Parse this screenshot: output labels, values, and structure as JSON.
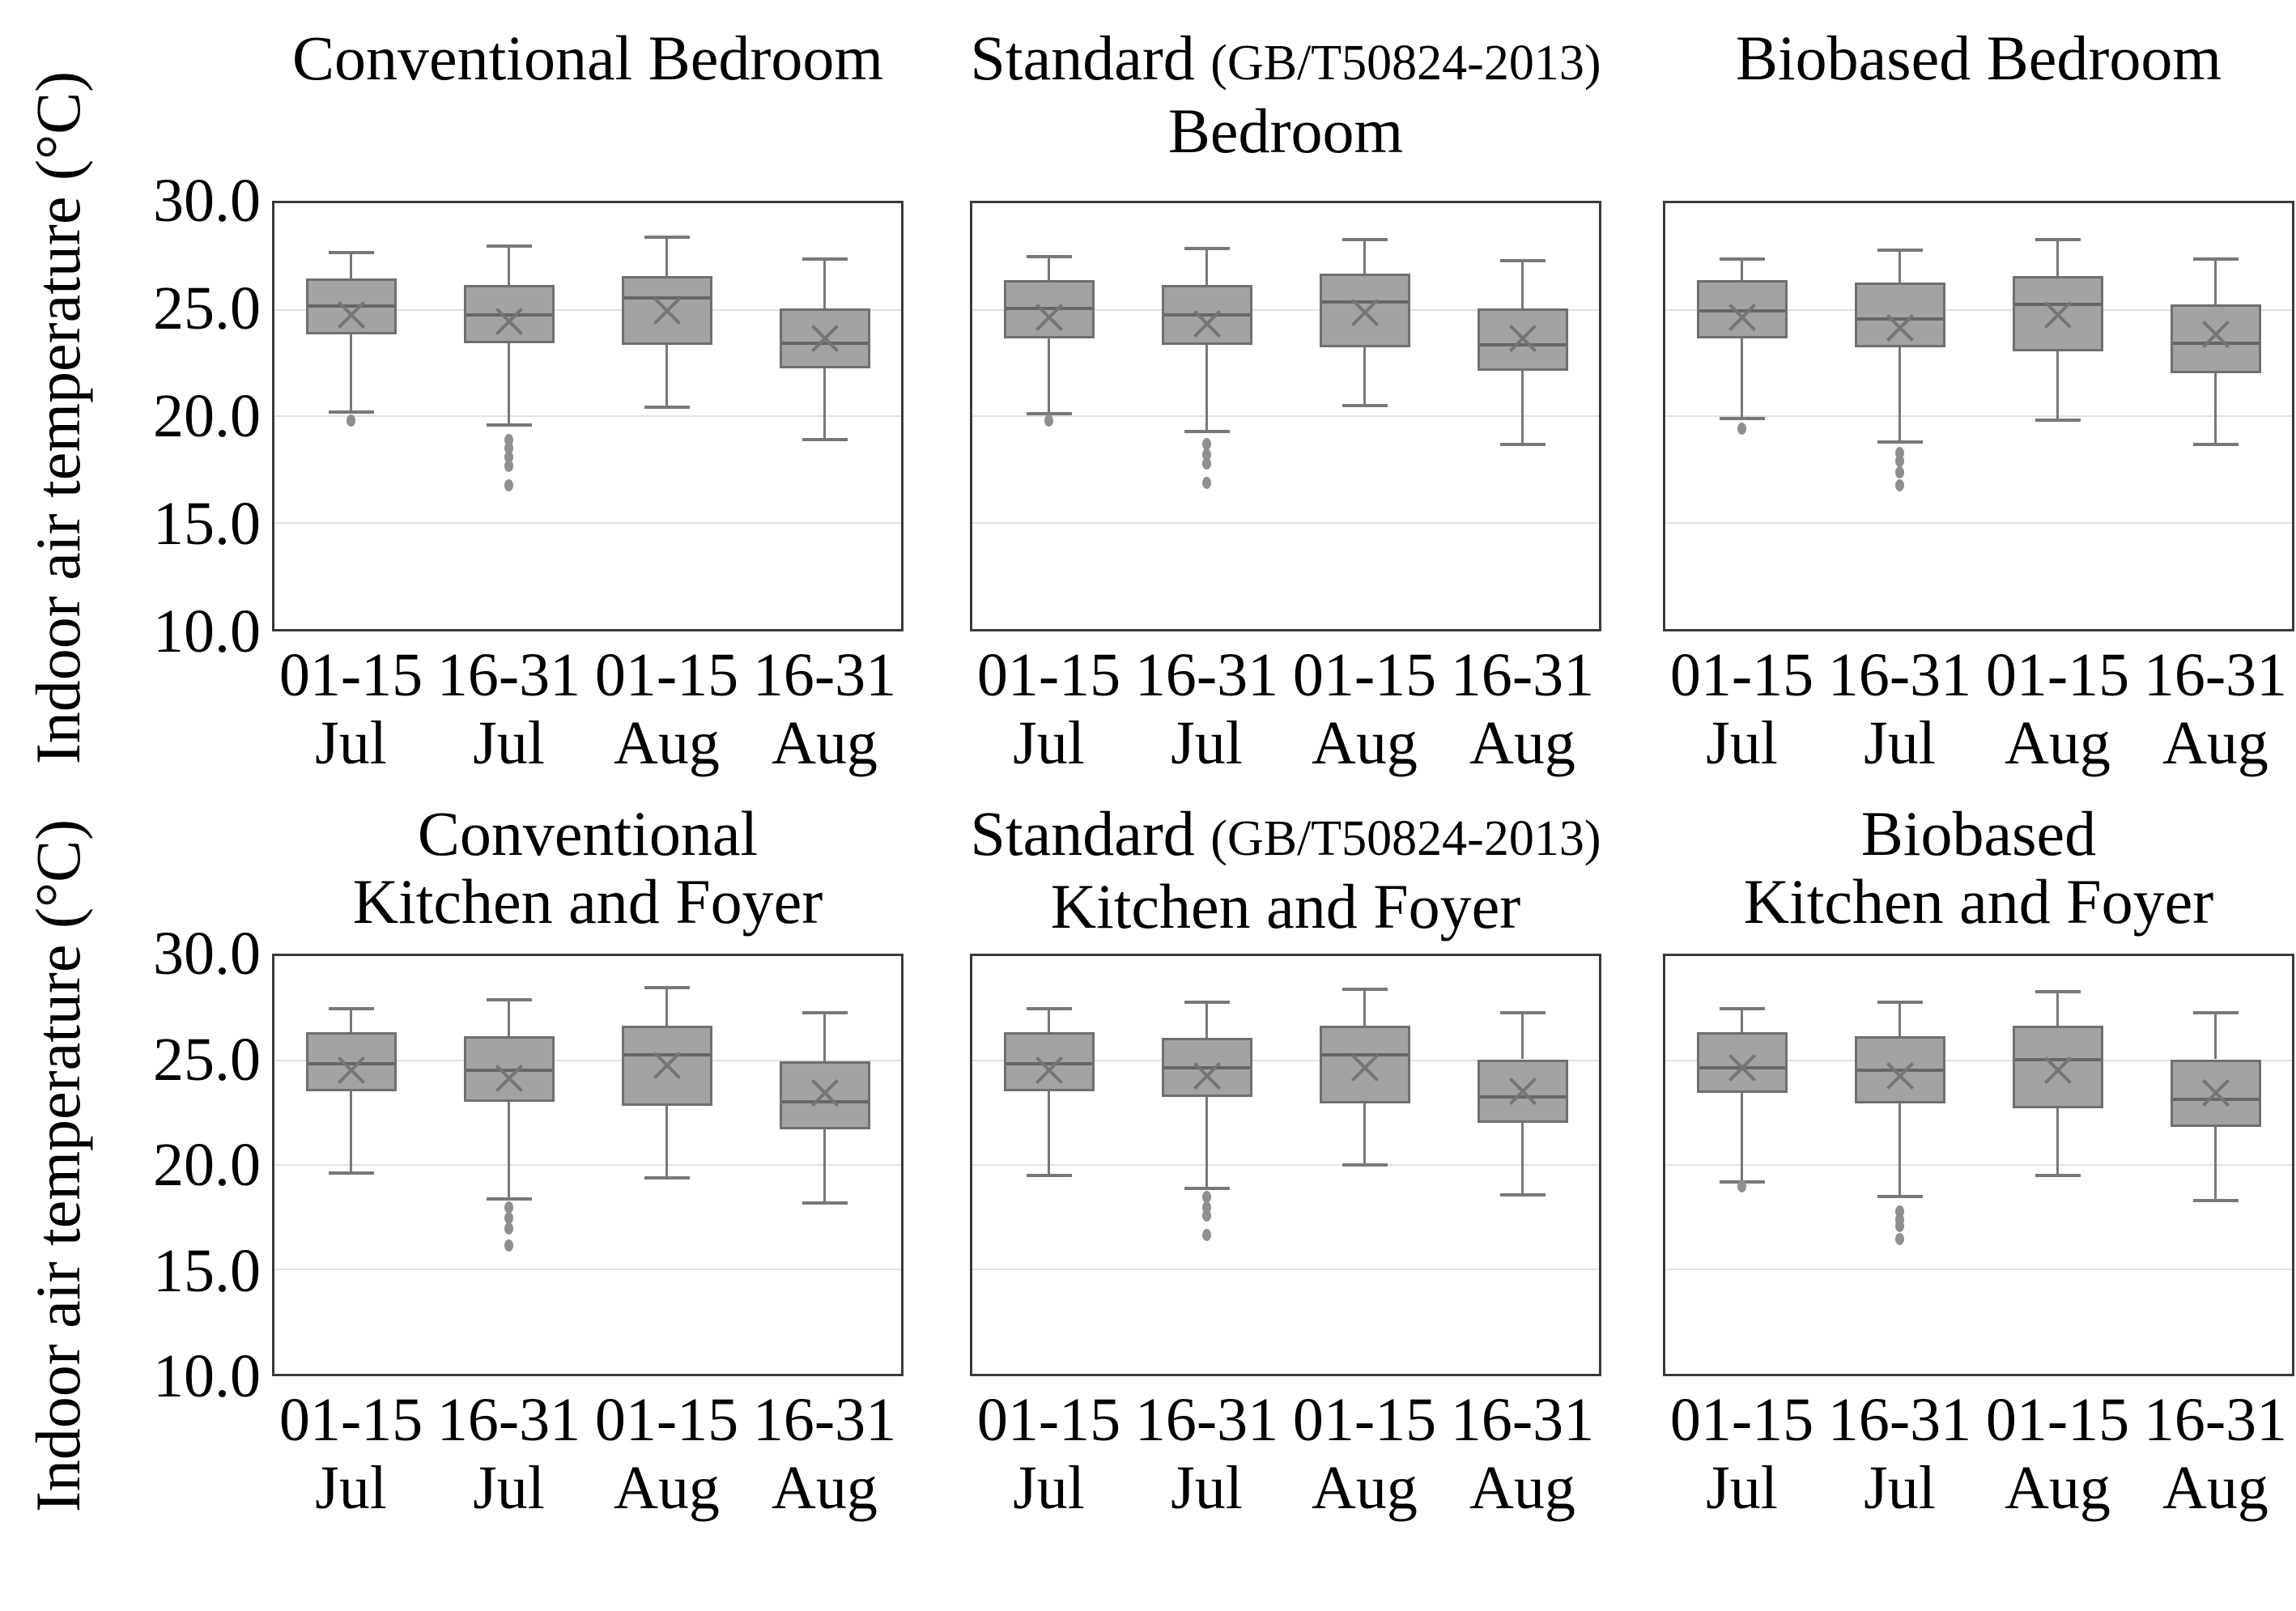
{
  "figure": {
    "description": "Six box plots of indoor air temperature by half-month period for three wall types (Conventional, Standard GB/T50824-2013, Biobased) and two room groups (Bedroom; Kitchen and Foyer)"
  },
  "chart_data": {
    "type": "boxplot",
    "layout": "2 rows x 3 columns, shared y axis per row",
    "ylabel": "Indoor air temperature (°C)",
    "ylim": [
      10.0,
      30.0
    ],
    "yticks": [
      30.0,
      25.0,
      20.0,
      15.0,
      10.0
    ],
    "ytick_labels": [
      "30.0",
      "25.0",
      "20.0",
      "15.0",
      "10.0"
    ],
    "gridlines": [
      25.0,
      20.0,
      15.0
    ],
    "grid": "horizontal light gray lines at 25, 20, 15; frame at 30 and 10",
    "legend": "none",
    "box_fill_color": "#a3a3a3",
    "box_line_color": "#6f6f6f",
    "whisker_color": "#787878",
    "gridline_color": "#e2e2e2",
    "categories": [
      {
        "period": "01-15",
        "month": "Jul"
      },
      {
        "period": "16-31",
        "month": "Jul"
      },
      {
        "period": "01-15",
        "month": "Aug"
      },
      {
        "period": "16-31",
        "month": "Aug"
      }
    ],
    "panels": [
      {
        "name": "conventional-bedroom",
        "row": 0,
        "col": 0,
        "title_lines": [
          [
            {
              "text": "Conventional Bedroom",
              "small": false
            }
          ]
        ],
        "boxes": [
          {
            "category": "01-15 Jul",
            "whisker_low": 20.2,
            "q1": 23.8,
            "median": 25.1,
            "mean": 24.7,
            "q3": 26.4,
            "whisker_high": 27.6,
            "outliers": [
              19.8
            ]
          },
          {
            "category": "16-31 Jul",
            "whisker_low": 19.6,
            "q1": 23.4,
            "median": 24.7,
            "mean": 24.4,
            "q3": 26.1,
            "whisker_high": 27.9,
            "outliers": [
              18.9,
              18.5,
              18.1,
              17.7,
              16.8
            ]
          },
          {
            "category": "01-15 Aug",
            "whisker_low": 20.4,
            "q1": 23.3,
            "median": 25.5,
            "mean": 24.9,
            "q3": 26.5,
            "whisker_high": 28.3,
            "outliers": []
          },
          {
            "category": "16-31 Aug",
            "whisker_low": 18.9,
            "q1": 22.2,
            "median": 23.4,
            "mean": 23.6,
            "q3": 25.0,
            "whisker_high": 27.3,
            "outliers": []
          }
        ]
      },
      {
        "name": "standard-bedroom",
        "row": 0,
        "col": 1,
        "title_lines": [
          [
            {
              "text": "Standard ",
              "small": false
            },
            {
              "text": "(GB/T50824-2013)",
              "small": true
            }
          ],
          [
            {
              "text": "Bedroom",
              "small": false
            }
          ]
        ],
        "boxes": [
          {
            "category": "01-15 Jul",
            "whisker_low": 20.1,
            "q1": 23.6,
            "median": 25.0,
            "mean": 24.6,
            "q3": 26.3,
            "whisker_high": 27.4,
            "outliers": [
              19.8
            ]
          },
          {
            "category": "16-31 Jul",
            "whisker_low": 19.3,
            "q1": 23.3,
            "median": 24.7,
            "mean": 24.3,
            "q3": 26.1,
            "whisker_high": 27.8,
            "outliers": [
              18.7,
              18.2,
              17.8,
              16.9
            ]
          },
          {
            "category": "01-15 Aug",
            "whisker_low": 20.5,
            "q1": 23.2,
            "median": 25.3,
            "mean": 24.8,
            "q3": 26.6,
            "whisker_high": 28.2,
            "outliers": []
          },
          {
            "category": "16-31 Aug",
            "whisker_low": 18.7,
            "q1": 22.1,
            "median": 23.3,
            "mean": 23.6,
            "q3": 25.0,
            "whisker_high": 27.2,
            "outliers": []
          }
        ]
      },
      {
        "name": "biobased-bedroom",
        "row": 0,
        "col": 2,
        "title_lines": [
          [
            {
              "text": "Biobased Bedroom",
              "small": false
            }
          ]
        ],
        "boxes": [
          {
            "category": "01-15 Jul",
            "whisker_low": 19.9,
            "q1": 23.6,
            "median": 24.9,
            "mean": 24.6,
            "q3": 26.3,
            "whisker_high": 27.3,
            "outliers": [
              19.4
            ]
          },
          {
            "category": "16-31 Jul",
            "whisker_low": 18.8,
            "q1": 23.2,
            "median": 24.5,
            "mean": 24.1,
            "q3": 26.2,
            "whisker_high": 27.7,
            "outliers": [
              18.3,
              17.9,
              17.4,
              16.8
            ]
          },
          {
            "category": "01-15 Aug",
            "whisker_low": 19.8,
            "q1": 23.0,
            "median": 25.2,
            "mean": 24.7,
            "q3": 26.5,
            "whisker_high": 28.2,
            "outliers": []
          },
          {
            "category": "16-31 Aug",
            "whisker_low": 18.7,
            "q1": 22.0,
            "median": 23.4,
            "mean": 23.8,
            "q3": 25.2,
            "whisker_high": 27.3,
            "outliers": []
          }
        ]
      },
      {
        "name": "conventional-kitchen-foyer",
        "row": 1,
        "col": 0,
        "title_lines": [
          [
            {
              "text": "Conventional",
              "small": false
            }
          ],
          [
            {
              "text": "Kitchen and Foyer",
              "small": false
            }
          ]
        ],
        "boxes": [
          {
            "category": "01-15 Jul",
            "whisker_low": 19.6,
            "q1": 23.5,
            "median": 24.8,
            "mean": 24.5,
            "q3": 26.3,
            "whisker_high": 27.4,
            "outliers": []
          },
          {
            "category": "16-31 Jul",
            "whisker_low": 18.4,
            "q1": 23.0,
            "median": 24.5,
            "mean": 24.1,
            "q3": 26.1,
            "whisker_high": 27.8,
            "outliers": [
              18.0,
              17.5,
              17.0,
              16.2
            ]
          },
          {
            "category": "01-15 Aug",
            "whisker_low": 19.4,
            "q1": 22.8,
            "median": 25.2,
            "mean": 24.7,
            "q3": 26.6,
            "whisker_high": 28.4,
            "outliers": []
          },
          {
            "category": "16-31 Aug",
            "whisker_low": 18.2,
            "q1": 21.7,
            "median": 23.0,
            "mean": 23.4,
            "q3": 24.9,
            "whisker_high": 27.2,
            "outliers": []
          }
        ]
      },
      {
        "name": "standard-kitchen-foyer",
        "row": 1,
        "col": 1,
        "title_lines": [
          [
            {
              "text": "Standard ",
              "small": false
            },
            {
              "text": "(GB/T50824-2013)",
              "small": true
            }
          ],
          [
            {
              "text": "Kitchen and Foyer",
              "small": false
            }
          ]
        ],
        "boxes": [
          {
            "category": "01-15 Jul",
            "whisker_low": 19.5,
            "q1": 23.5,
            "median": 24.8,
            "mean": 24.5,
            "q3": 26.3,
            "whisker_high": 27.4,
            "outliers": []
          },
          {
            "category": "16-31 Jul",
            "whisker_low": 18.9,
            "q1": 23.2,
            "median": 24.6,
            "mean": 24.2,
            "q3": 26.0,
            "whisker_high": 27.7,
            "outliers": [
              18.5,
              18.0,
              17.6,
              16.7
            ]
          },
          {
            "category": "01-15 Aug",
            "whisker_low": 20.0,
            "q1": 22.9,
            "median": 25.2,
            "mean": 24.6,
            "q3": 26.6,
            "whisker_high": 28.3,
            "outliers": []
          },
          {
            "category": "16-31 Aug",
            "whisker_low": 18.6,
            "q1": 22.0,
            "median": 23.2,
            "mean": 23.5,
            "q3": 25.0,
            "whisker_high": 27.2,
            "outliers": []
          }
        ]
      },
      {
        "name": "biobased-kitchen-foyer",
        "row": 1,
        "col": 2,
        "title_lines": [
          [
            {
              "text": "Biobased",
              "small": false
            }
          ],
          [
            {
              "text": "Kitchen and Foyer",
              "small": false
            }
          ]
        ],
        "boxes": [
          {
            "category": "01-15 Jul",
            "whisker_low": 19.2,
            "q1": 23.4,
            "median": 24.6,
            "mean": 24.6,
            "q3": 26.3,
            "whisker_high": 27.4,
            "outliers": [
              19.0
            ]
          },
          {
            "category": "16-31 Jul",
            "whisker_low": 18.5,
            "q1": 22.9,
            "median": 24.5,
            "mean": 24.2,
            "q3": 26.1,
            "whisker_high": 27.7,
            "outliers": [
              17.8,
              17.4,
              17.1,
              16.5
            ]
          },
          {
            "category": "01-15 Aug",
            "whisker_low": 19.5,
            "q1": 22.7,
            "median": 25.0,
            "mean": 24.5,
            "q3": 26.6,
            "whisker_high": 28.2,
            "outliers": []
          },
          {
            "category": "16-31 Aug",
            "whisker_low": 18.3,
            "q1": 21.8,
            "median": 23.1,
            "mean": 23.4,
            "q3": 25.0,
            "whisker_high": 27.2,
            "outliers": []
          }
        ]
      }
    ]
  }
}
